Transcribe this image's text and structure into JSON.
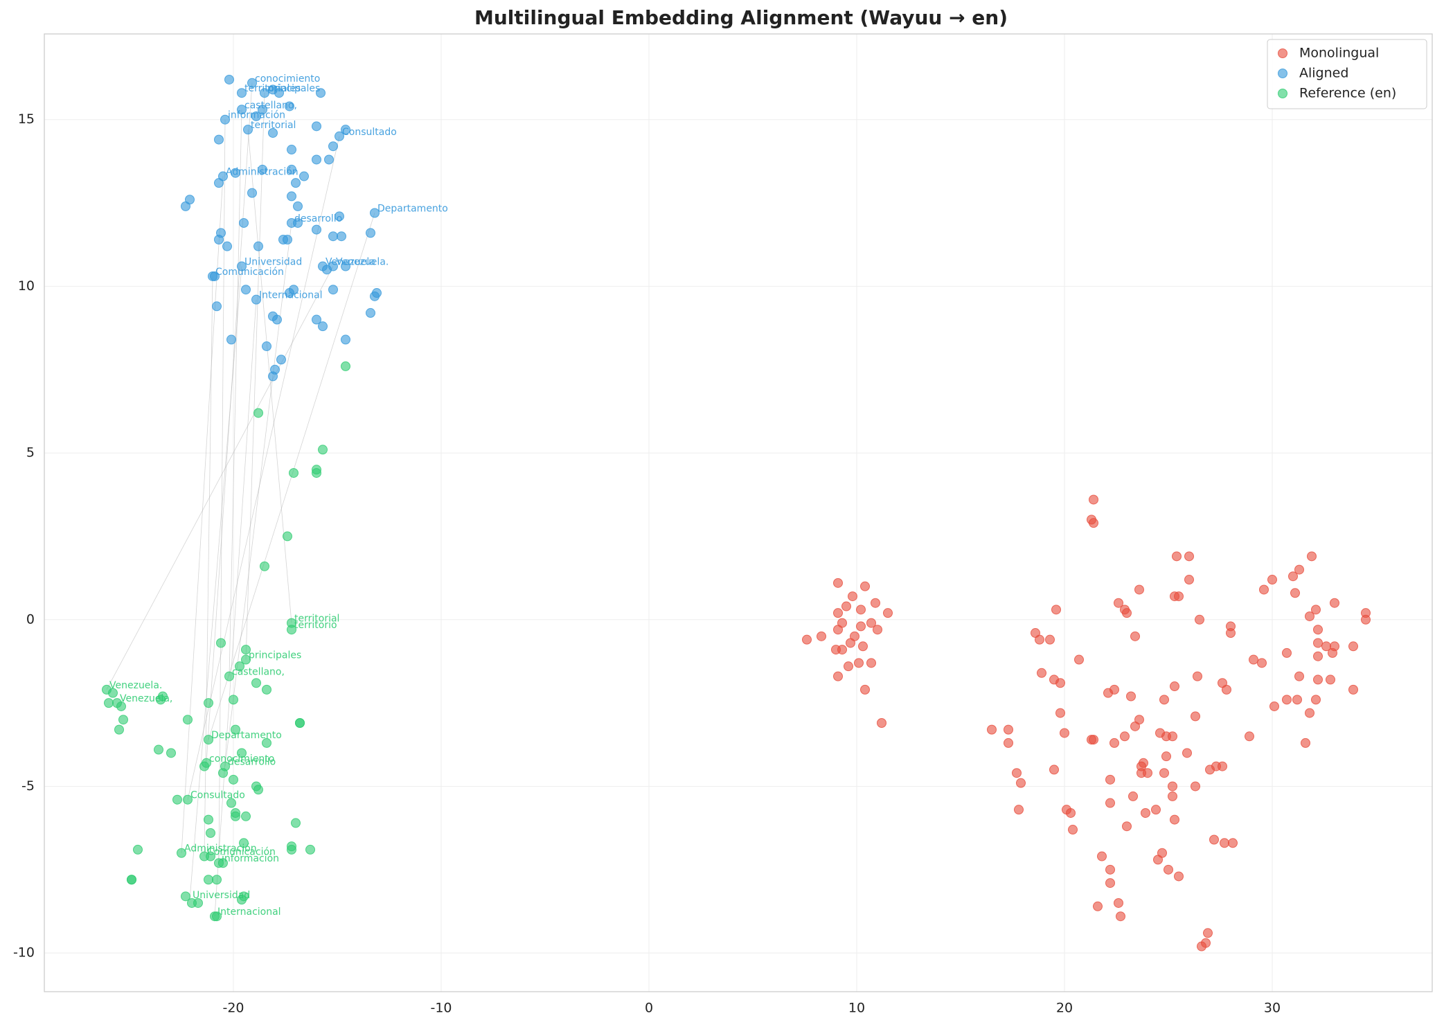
{
  "chart_data": {
    "type": "scatter",
    "title": "Multilingual Embedding Alignment (Wayuu → en)",
    "xlim": [
      -29.1,
      37.7
    ],
    "ylim": [
      -11.16,
      17.57
    ],
    "xticks": [
      -20,
      -10,
      0,
      10,
      20,
      30
    ],
    "yticks": [
      -10,
      -5,
      0,
      5,
      10,
      15
    ],
    "grid": true,
    "legend": "upper right",
    "series": [
      {
        "name": "Monolingual",
        "color": "#e74c3c",
        "x": [
          9.1,
          10.4,
          9.8,
          9.5,
          10.9,
          9.1,
          10.2,
          11.5,
          9.3,
          10.7,
          9.1,
          10.2,
          11.0,
          9.9,
          7.6,
          8.3,
          10.3,
          9.7,
          9.3,
          9.0,
          9.6,
          10.1,
          10.7,
          9.1,
          10.4,
          11.2,
          21.4,
          21.3,
          21.4,
          25.4,
          26.0,
          23.6,
          26.0,
          25.5,
          25.3,
          22.6,
          22.9,
          23.0,
          19.6,
          26.5,
          28.0,
          28.0,
          18.6,
          18.8,
          19.3,
          23.4,
          20.7,
          18.9,
          26.4,
          25.3,
          19.5,
          19.8,
          27.6,
          27.8,
          22.4,
          22.1,
          23.2,
          24.8,
          19.8,
          26.3,
          23.6,
          23.4,
          16.5,
          17.3,
          20.0,
          22.9,
          24.6,
          24.9,
          25.2,
          28.9,
          21.3,
          21.4,
          22.4,
          17.3,
          23.8,
          23.7,
          24.9,
          25.9,
          27.3,
          27.6,
          19.5,
          17.7,
          27.0,
          23.7,
          24.0,
          24.8,
          17.9,
          22.2,
          25.2,
          26.3,
          23.3,
          25.2,
          22.2,
          17.8,
          20.1,
          20.3,
          24.4,
          23.9,
          25.3,
          23.0,
          20.4,
          27.2,
          27.7,
          28.1,
          24.7,
          21.8,
          24.5,
          22.2,
          25.0,
          25.5,
          22.2,
          22.6,
          21.6,
          22.7,
          26.9,
          26.8,
          26.6,
          31.9,
          31.3,
          31.0,
          30.0,
          29.6,
          31.1,
          33.0,
          32.1,
          34.5,
          34.5,
          31.8,
          32.2,
          32.2,
          32.6,
          33.0,
          33.9,
          30.7,
          32.9,
          32.2,
          29.1,
          29.5,
          31.3,
          32.2,
          32.8,
          33.9,
          32.1,
          30.7,
          31.2,
          30.1,
          31.8,
          31.6
        ],
        "y": [
          1.1,
          1.0,
          0.7,
          0.4,
          0.5,
          0.2,
          0.3,
          0.2,
          -0.1,
          -0.1,
          -0.3,
          -0.2,
          -0.3,
          -0.5,
          -0.6,
          -0.5,
          -0.8,
          -0.7,
          -0.9,
          -0.9,
          -1.4,
          -1.3,
          -1.3,
          -1.7,
          -2.1,
          -3.1,
          3.6,
          3.0,
          2.9,
          1.9,
          1.9,
          0.9,
          1.2,
          0.7,
          0.7,
          0.5,
          0.3,
          0.2,
          0.3,
          0,
          -0.2,
          -0.4,
          -0.4,
          -0.6,
          -0.6,
          -0.5,
          -1.2,
          -1.6,
          -1.7,
          -2.0,
          -1.8,
          -1.9,
          -1.9,
          -2.1,
          -2.1,
          -2.2,
          -2.3,
          -2.4,
          -2.8,
          -2.9,
          -3.0,
          -3.2,
          -3.3,
          -3.3,
          -3.4,
          -3.5,
          -3.4,
          -3.5,
          -3.5,
          -3.5,
          -3.6,
          -3.6,
          -3.7,
          -3.7,
          -4.3,
          -4.4,
          -4.1,
          -4.0,
          -4.4,
          -4.4,
          -4.5,
          -4.6,
          -4.5,
          -4.6,
          -4.6,
          -4.6,
          -4.9,
          -4.8,
          -5.0,
          -5.0,
          -5.3,
          -5.3,
          -5.5,
          -5.7,
          -5.7,
          -5.8,
          -5.7,
          -5.8,
          -6.0,
          -6.2,
          -6.3,
          -6.6,
          -6.7,
          -6.7,
          -7.0,
          -7.1,
          -7.2,
          -7.5,
          -7.5,
          -7.7,
          -7.9,
          -8.5,
          -8.6,
          -8.9,
          -9.4,
          -9.7,
          -9.8,
          1.9,
          1.5,
          1.3,
          1.2,
          0.9,
          0.8,
          0.5,
          0.3,
          0.2,
          0,
          0.1,
          -0.3,
          -0.7,
          -0.8,
          -0.8,
          -0.8,
          -1.0,
          -1.0,
          -1.1,
          -1.2,
          -1.3,
          -1.7,
          -1.8,
          -1.8,
          -2.1,
          -2.4,
          -2.4,
          -2.4,
          -2.6,
          -2.8,
          -3.7
        ]
      },
      {
        "name": "Aligned",
        "color": "#3498db",
        "x": [
          -20.2,
          -19.1,
          -19.6,
          -18.5,
          -18.1,
          -17.8,
          -15.8,
          -19.6,
          -18.9,
          -18.6,
          -17.3,
          -20.4,
          -19.3,
          -18.1,
          -16.0,
          -14.6,
          -14.9,
          -20.7,
          -17.2,
          -15.2,
          -15.4,
          -16.0,
          -18.6,
          -17.2,
          -19.9,
          -20.5,
          -20.7,
          -16.6,
          -17.0,
          -19.1,
          -22.1,
          -22.3,
          -17.2,
          -16.9,
          -14.9,
          -13.2,
          -17.2,
          -16.9,
          -19.5,
          -16.0,
          -20.6,
          -20.7,
          -17.6,
          -17.4,
          -15.2,
          -14.8,
          -13.4,
          -20.3,
          -18.8,
          -19.6,
          -15.7,
          -15.5,
          -15.2,
          -14.6,
          -21.0,
          -20.9,
          -19.4,
          -15.2,
          -17.3,
          -17.1,
          -13.1,
          -13.2,
          -18.9,
          -20.8,
          -13.4,
          -18.1,
          -17.9,
          -16.0,
          -15.7,
          -14.6,
          -20.1,
          -18.4,
          -17.7,
          -18.0,
          -18.1
        ],
        "y": [
          16.2,
          16.1,
          15.8,
          15.8,
          15.9,
          15.8,
          15.8,
          15.3,
          15.1,
          15.3,
          15.4,
          15.0,
          14.7,
          14.6,
          14.8,
          14.7,
          14.5,
          14.4,
          14.1,
          14.2,
          13.8,
          13.8,
          13.5,
          13.5,
          13.4,
          13.3,
          13.1,
          13.3,
          13.1,
          12.8,
          12.6,
          12.4,
          12.7,
          12.4,
          12.1,
          12.2,
          11.9,
          11.9,
          11.9,
          11.7,
          11.6,
          11.4,
          11.4,
          11.4,
          11.5,
          11.5,
          11.6,
          11.2,
          11.2,
          10.6,
          10.6,
          10.5,
          10.6,
          10.6,
          10.3,
          10.3,
          9.9,
          9.9,
          9.8,
          9.9,
          9.8,
          9.7,
          9.6,
          9.4,
          9.2,
          9.1,
          9.0,
          9.0,
          8.8,
          8.4,
          8.4,
          8.2,
          7.8,
          7.5,
          7.3
        ],
        "annotations": [
          {
            "text": "conocimiento",
            "x": -19.1,
            "y": 16.1
          },
          {
            "text": "territoriales",
            "x": -19.6,
            "y": 15.8
          },
          {
            "text": "principales",
            "x": -18.5,
            "y": 15.8
          },
          {
            "text": "castellano,",
            "x": -19.6,
            "y": 15.3
          },
          {
            "text": "información",
            "x": -20.4,
            "y": 15.0
          },
          {
            "text": "territorial",
            "x": -19.3,
            "y": 14.7
          },
          {
            "text": "Consultado",
            "x": -14.9,
            "y": 14.5
          },
          {
            "text": "Administración",
            "x": -20.5,
            "y": 13.3
          },
          {
            "text": "Departamento",
            "x": -13.2,
            "y": 12.2
          },
          {
            "text": "desarrollo",
            "x": -17.2,
            "y": 11.9
          },
          {
            "text": "Universidad",
            "x": -19.6,
            "y": 10.6
          },
          {
            "text": "Comunicación",
            "x": -21.0,
            "y": 10.3
          },
          {
            "text": "Internacional",
            "x": -18.9,
            "y": 9.6
          },
          {
            "text": "Venezuela",
            "x": -15.7,
            "y": 10.6
          },
          {
            "text": "Venezuela.",
            "x": -15.2,
            "y": 10.6
          }
        ]
      },
      {
        "name": "Reference (en)",
        "color": "#2ecc71",
        "x": [
          -14.6,
          -18.8,
          -15.7,
          -16.0,
          -16.0,
          -17.1,
          -17.4,
          -18.5,
          -17.2,
          -17.2,
          -20.6,
          -19.4,
          -19.4,
          -19.7,
          -20.2,
          -18.9,
          -18.4,
          -26.1,
          -25.8,
          -23.4,
          -23.5,
          -20.0,
          -21.2,
          -26.0,
          -25.6,
          -25.4,
          -25.3,
          -22.2,
          -16.8,
          -16.8,
          -25.5,
          -19.9,
          -21.2,
          -18.4,
          -23.6,
          -23.0,
          -19.6,
          -21.3,
          -21.4,
          -20.4,
          -20.5,
          -20.0,
          -18.9,
          -18.8,
          -22.2,
          -22.7,
          -20.1,
          -19.9,
          -19.4,
          -19.9,
          -21.2,
          -17.0,
          -21.1,
          -19.5,
          -24.6,
          -16.3,
          -17.2,
          -17.2,
          -22.5,
          -21.1,
          -21.4,
          -20.5,
          -20.7,
          -21.2,
          -20.8,
          -24.9,
          -24.9,
          -19.5,
          -19.6,
          -22.3,
          -22.0,
          -21.7,
          -20.8,
          -20.9
        ],
        "y": [
          7.6,
          6.2,
          5.1,
          4.5,
          4.4,
          4.4,
          2.5,
          1.6,
          -0.1,
          -0.3,
          -0.7,
          -0.9,
          -1.2,
          -1.4,
          -1.7,
          -1.9,
          -2.1,
          -2.1,
          -2.2,
          -2.3,
          -2.4,
          -2.4,
          -2.5,
          -2.5,
          -2.5,
          -2.6,
          -3.0,
          -3.0,
          -3.1,
          -3.1,
          -3.3,
          -3.3,
          -3.6,
          -3.7,
          -3.9,
          -4.0,
          -4.0,
          -4.3,
          -4.4,
          -4.4,
          -4.6,
          -4.8,
          -5.0,
          -5.1,
          -5.4,
          -5.4,
          -5.5,
          -5.8,
          -5.9,
          -5.9,
          -6.0,
          -6.1,
          -6.4,
          -6.7,
          -6.9,
          -6.9,
          -6.8,
          -6.9,
          -7.0,
          -7.1,
          -7.1,
          -7.3,
          -7.3,
          -7.8,
          -7.8,
          -7.8,
          -7.8,
          -8.3,
          -8.4,
          -8.3,
          -8.5,
          -8.5,
          -8.9,
          -8.9
        ],
        "annotations": [
          {
            "text": "territorial",
            "x": -17.2,
            "y": -0.1
          },
          {
            "text": "territorio",
            "x": -17.2,
            "y": -0.3
          },
          {
            "text": "principales",
            "x": -19.4,
            "y": -1.2
          },
          {
            "text": "castellano,",
            "x": -20.2,
            "y": -1.7
          },
          {
            "text": "Venezuela.",
            "x": -26.1,
            "y": -2.1
          },
          {
            "text": "Venezuela,",
            "x": -25.6,
            "y": -2.5
          },
          {
            "text": "Departamento",
            "x": -21.2,
            "y": -3.6
          },
          {
            "text": "conocimiento",
            "x": -21.3,
            "y": -4.3
          },
          {
            "text": "desarrollo",
            "x": -20.4,
            "y": -4.4
          },
          {
            "text": "Consultado",
            "x": -22.2,
            "y": -5.4
          },
          {
            "text": "Administración",
            "x": -22.5,
            "y": -7.0
          },
          {
            "text": "Comunicación",
            "x": -21.4,
            "y": -7.1
          },
          {
            "text": "información",
            "x": -20.7,
            "y": -7.3
          },
          {
            "text": "Universidad",
            "x": -22.1,
            "y": -8.4
          },
          {
            "text": "Internacional",
            "x": -20.9,
            "y": -8.9
          }
        ]
      }
    ]
  }
}
